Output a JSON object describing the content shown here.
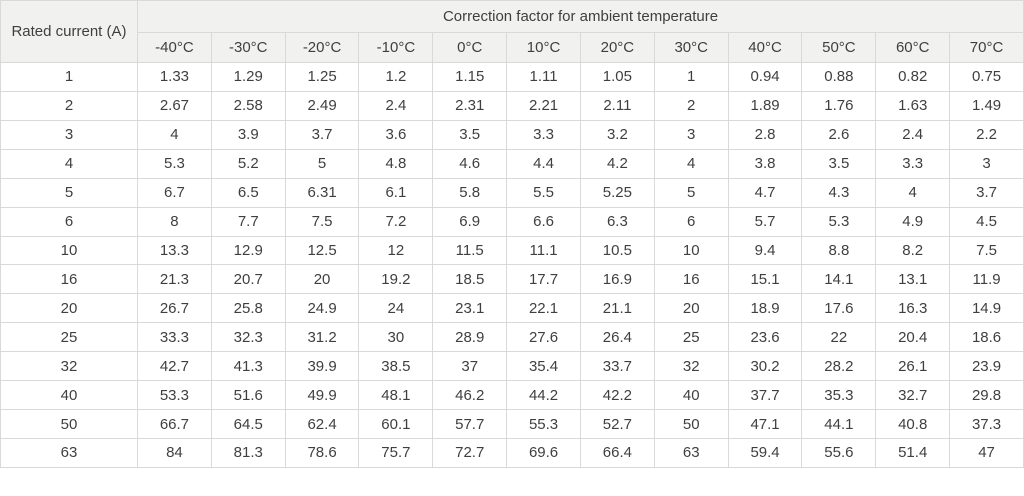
{
  "chart_data": {
    "type": "table",
    "title": "Correction factor for ambient temperature",
    "corner_header": "Rated current (A)",
    "columns": [
      "-40°C",
      "-30°C",
      "-20°C",
      "-10°C",
      "0°C",
      "10°C",
      "20°C",
      "30°C",
      "40°C",
      "50°C",
      "60°C",
      "70°C"
    ],
    "rows": [
      {
        "current": "1",
        "values": [
          "1.33",
          "1.29",
          "1.25",
          "1.2",
          "1.15",
          "1.11",
          "1.05",
          "1",
          "0.94",
          "0.88",
          "0.82",
          "0.75"
        ]
      },
      {
        "current": "2",
        "values": [
          "2.67",
          "2.58",
          "2.49",
          "2.4",
          "2.31",
          "2.21",
          "2.11",
          "2",
          "1.89",
          "1.76",
          "1.63",
          "1.49"
        ]
      },
      {
        "current": "3",
        "values": [
          "4",
          "3.9",
          "3.7",
          "3.6",
          "3.5",
          "3.3",
          "3.2",
          "3",
          "2.8",
          "2.6",
          "2.4",
          "2.2"
        ]
      },
      {
        "current": "4",
        "values": [
          "5.3",
          "5.2",
          "5",
          "4.8",
          "4.6",
          "4.4",
          "4.2",
          "4",
          "3.8",
          "3.5",
          "3.3",
          "3"
        ]
      },
      {
        "current": "5",
        "values": [
          "6.7",
          "6.5",
          "6.31",
          "6.1",
          "5.8",
          "5.5",
          "5.25",
          "5",
          "4.7",
          "4.3",
          "4",
          "3.7"
        ]
      },
      {
        "current": "6",
        "values": [
          "8",
          "7.7",
          "7.5",
          "7.2",
          "6.9",
          "6.6",
          "6.3",
          "6",
          "5.7",
          "5.3",
          "4.9",
          "4.5"
        ]
      },
      {
        "current": "10",
        "values": [
          "13.3",
          "12.9",
          "12.5",
          "12",
          "11.5",
          "11.1",
          "10.5",
          "10",
          "9.4",
          "8.8",
          "8.2",
          "7.5"
        ]
      },
      {
        "current": "16",
        "values": [
          "21.3",
          "20.7",
          "20",
          "19.2",
          "18.5",
          "17.7",
          "16.9",
          "16",
          "15.1",
          "14.1",
          "13.1",
          "11.9"
        ]
      },
      {
        "current": "20",
        "values": [
          "26.7",
          "25.8",
          "24.9",
          "24",
          "23.1",
          "22.1",
          "21.1",
          "20",
          "18.9",
          "17.6",
          "16.3",
          "14.9"
        ]
      },
      {
        "current": "25",
        "values": [
          "33.3",
          "32.3",
          "31.2",
          "30",
          "28.9",
          "27.6",
          "26.4",
          "25",
          "23.6",
          "22",
          "20.4",
          "18.6"
        ]
      },
      {
        "current": "32",
        "values": [
          "42.7",
          "41.3",
          "39.9",
          "38.5",
          "37",
          "35.4",
          "33.7",
          "32",
          "30.2",
          "28.2",
          "26.1",
          "23.9"
        ]
      },
      {
        "current": "40",
        "values": [
          "53.3",
          "51.6",
          "49.9",
          "48.1",
          "46.2",
          "44.2",
          "42.2",
          "40",
          "37.7",
          "35.3",
          "32.7",
          "29.8"
        ]
      },
      {
        "current": "50",
        "values": [
          "66.7",
          "64.5",
          "62.4",
          "60.1",
          "57.7",
          "55.3",
          "52.7",
          "50",
          "47.1",
          "44.1",
          "40.8",
          "37.3"
        ]
      },
      {
        "current": "63",
        "values": [
          "84",
          "81.3",
          "78.6",
          "75.7",
          "72.7",
          "69.6",
          "66.4",
          "63",
          "59.4",
          "55.6",
          "51.4",
          "47"
        ]
      }
    ]
  },
  "colors": {
    "header_bg": "#f1f1f0",
    "row_bg": "#ffffff",
    "border": "#d9d9d9",
    "text": "#3f3f3e"
  }
}
